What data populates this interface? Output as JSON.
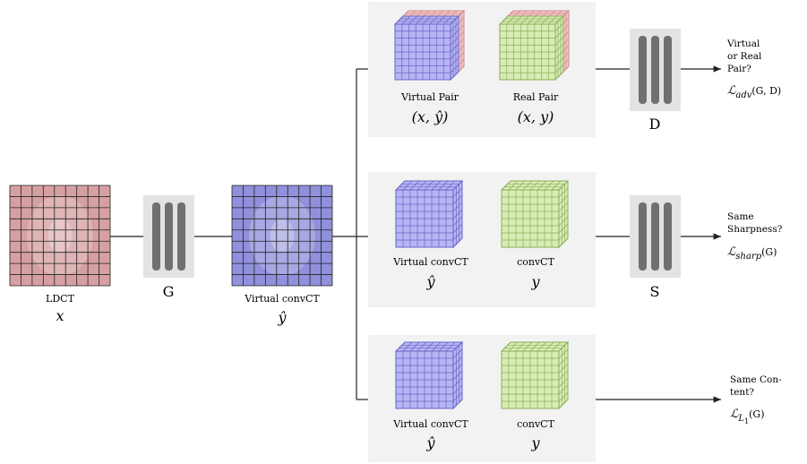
{
  "input": {
    "label": "LDCT",
    "symbol": "x"
  },
  "generator": {
    "label": "G"
  },
  "output": {
    "label": "Virtual convCT",
    "symbol": "ŷ"
  },
  "branches": [
    {
      "items": [
        {
          "label": "Virtual Pair",
          "symbol": "(x, ŷ)"
        },
        {
          "label": "Real Pair",
          "symbol": "(x, y)"
        }
      ],
      "network": "D",
      "question": [
        "Virtual",
        "or Real",
        "Pair?"
      ],
      "loss": {
        "symbol": "ℒ",
        "subscript": "adv",
        "args": "(G, D)"
      }
    },
    {
      "items": [
        {
          "label": "Virtual convCT",
          "symbol": "ŷ"
        },
        {
          "label": "convCT",
          "symbol": "y"
        }
      ],
      "network": "S",
      "question": [
        "Same",
        "Sharpness?"
      ],
      "loss": {
        "symbol": "ℒ",
        "subscript": "sharp",
        "args": "(G)"
      }
    },
    {
      "items": [
        {
          "label": "Virtual convCT",
          "symbol": "ŷ"
        },
        {
          "label": "convCT",
          "symbol": "y"
        }
      ],
      "question": [
        "Same Con-",
        "tent?"
      ],
      "loss": {
        "symbol": "ℒ",
        "subscript": "L",
        "subsubscript": "1",
        "args": "(G)"
      }
    }
  ]
}
